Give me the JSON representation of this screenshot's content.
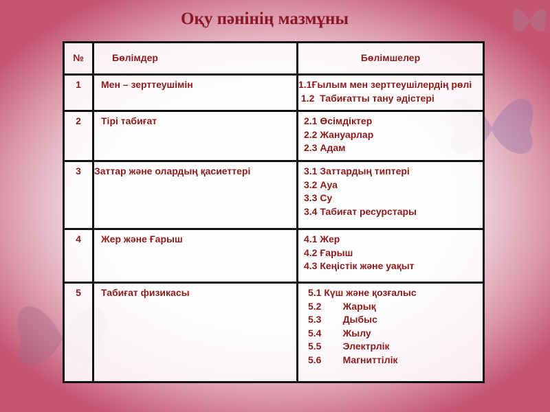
{
  "title": "Оқу пәнінің мазмұны",
  "table": {
    "headers": [
      "№",
      "Бөлімдер",
      "Бөлімшелер"
    ],
    "rows": [
      {
        "num": "1",
        "section": "Мен – зерттеушімін",
        "subsections": [
          "1.1Ғылым мен зерттеушілердің рөлі",
          " 1.2  Табиғатты тану әдістері"
        ]
      },
      {
        "num": "2",
        "section": "Тірі табиғат",
        "subsections": [
          "2.1 Өсімдіктер",
          "2.2 Жануарлар",
          "2.3 Адам"
        ]
      },
      {
        "num": "3",
        "section": "Заттар және олардың қасиеттері",
        "subsections": [
          "3.1 Заттардың типтері",
          "3.2 Ауа",
          "3.3 Су",
          "3.4 Табиғат ресурстары"
        ]
      },
      {
        "num": "4",
        "section": "Жер және Ғарыш",
        "subsections": [
          "4.1 Жер",
          "4.2 Ғарыш",
          "4.3 Кеңістік және уақыт"
        ]
      },
      {
        "num": "5",
        "section": "Табиғат физикасы",
        "subsections": [
          "5.1 Күш және қозғалыс",
          "5.2        Жарық",
          "5.3        Дыбыс",
          "5.4        Жылу",
          "5.5        Электрлік",
          "5.6        Магниттілік"
        ]
      }
    ]
  },
  "colors": {
    "text": "#8b1a1a",
    "title": "#8a1726",
    "background": "#c45573"
  }
}
